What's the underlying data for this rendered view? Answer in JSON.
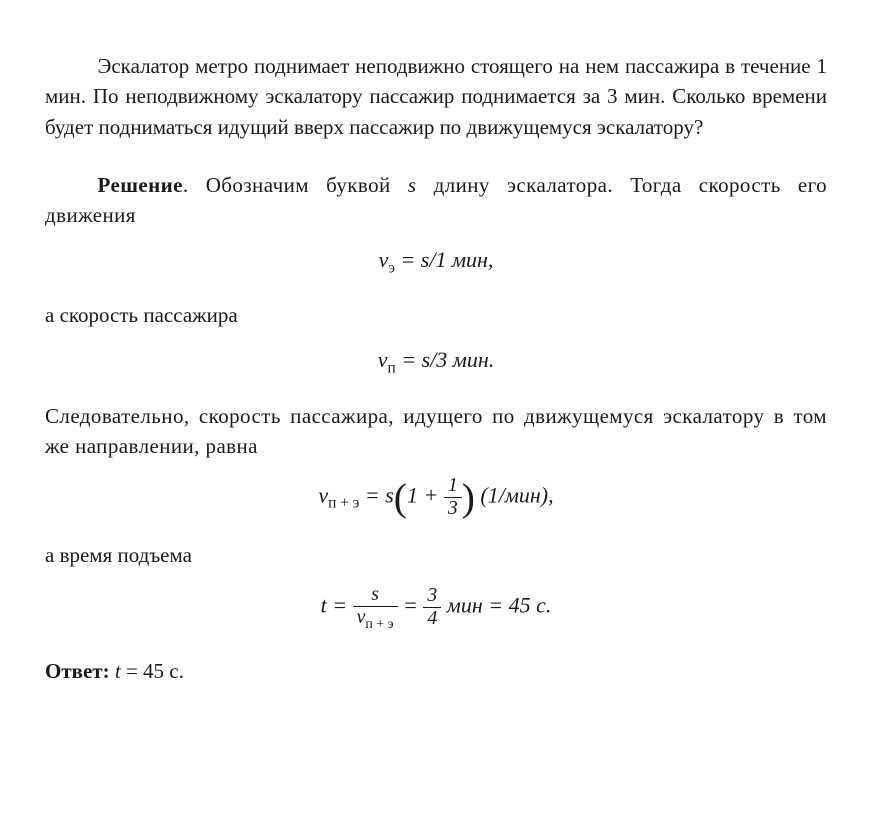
{
  "problem": "Эскалатор метро поднимает неподвижно стоящего на нем пассажира в течение 1 мин. По неподвижному эскалатору пассажир поднимается за 3 мин. Сколько времени будет подниматься идущий вверх пассажир по движущемуся эскалатору?",
  "solution": {
    "label": "Решение",
    "text1": ". Обозначим буквой ",
    "var_s": "s",
    "text1b": " длину эскалатора. Тогда скорость его движения",
    "eq1_lhs": "v",
    "eq1_sub": "э",
    "eq1_eq": " = ",
    "eq1_rhs_s": "s",
    "eq1_rhs_rest": "/1 мин,",
    "text2": "а скорость пассажира",
    "eq2_lhs": "v",
    "eq2_sub": "п",
    "eq2_eq": " = ",
    "eq2_rhs_s": "s",
    "eq2_rhs_rest": "/3 мин.",
    "text3": "Следовательно, скорость пассажира, идущего по движущемуся эскалатору в том же направлении, равна",
    "eq3_lhs": "v",
    "eq3_sub": "п + э",
    "eq3_eq": " = ",
    "eq3_s": "s",
    "eq3_one": "1 + ",
    "eq3_frac_num": "1",
    "eq3_frac_den": "3",
    "eq3_unit": " (1/мин),",
    "text4": "а время подъема",
    "eq4_t": "t",
    "eq4_eq1": " = ",
    "eq4_frac1_num_s": "s",
    "eq4_frac1_den_v": "v",
    "eq4_frac1_den_sub": "п + э",
    "eq4_eq2": " = ",
    "eq4_frac2_num": "3",
    "eq4_frac2_den": "4",
    "eq4_rest": " мин = 45 с."
  },
  "answer": {
    "label": "Ответ:",
    "text": " t = 45 с.",
    "text_t": "t",
    "text_rest": " = 45 с."
  },
  "style": {
    "text_color": "#1a1a1a",
    "background": "#ffffff",
    "font_family": "Georgia, Times New Roman, serif",
    "base_fontsize": 21
  }
}
